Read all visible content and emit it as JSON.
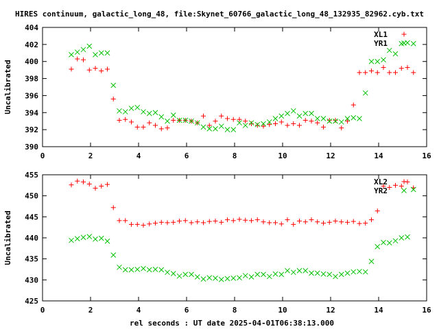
{
  "title": "HIRES continuum, galactic_long_48, file:Skynet_60766_galactic_long_48_132935_82962.cyb.txt",
  "xlabel": "rel seconds : UT date 2025-04-01T06:38:13.000",
  "colors": {
    "red": "#ff0000",
    "green": "#00c000"
  },
  "chart_data": [
    {
      "type": "scatter",
      "ylabel": "Uncalibrated",
      "xlim": [
        0,
        16
      ],
      "ylim": [
        390,
        404
      ],
      "xticks": [
        "0",
        "2",
        "4",
        "6",
        "8",
        "10",
        "12",
        "14",
        "16"
      ],
      "yticks": [
        "390",
        "392",
        "394",
        "396",
        "398",
        "400",
        "402",
        "404"
      ],
      "legend_position": "top-right",
      "series": [
        {
          "name": "XL1",
          "marker": "plus",
          "color": "red",
          "x": [
            1.2,
            1.45,
            1.7,
            1.95,
            2.2,
            2.45,
            2.7,
            2.95,
            3.2,
            3.45,
            3.7,
            3.95,
            4.2,
            4.45,
            4.7,
            4.95,
            5.2,
            5.45,
            5.7,
            5.95,
            6.2,
            6.45,
            6.7,
            6.95,
            7.2,
            7.45,
            7.7,
            7.95,
            8.2,
            8.45,
            8.7,
            8.95,
            9.2,
            9.45,
            9.7,
            9.95,
            10.2,
            10.45,
            10.7,
            10.95,
            11.2,
            11.45,
            11.7,
            11.95,
            12.2,
            12.45,
            12.7,
            12.95,
            13.2,
            13.45,
            13.7,
            13.95,
            14.2,
            14.45,
            14.7,
            14.95,
            15.2,
            15.45
          ],
          "y": [
            399.1,
            400.3,
            400.2,
            399.0,
            399.2,
            398.9,
            399.1,
            395.6,
            393.1,
            393.2,
            392.9,
            392.3,
            392.3,
            392.8,
            392.5,
            392.1,
            392.2,
            393.1,
            393.1,
            393.1,
            393.0,
            392.8,
            393.6,
            392.5,
            393.0,
            393.6,
            393.3,
            393.2,
            393.2,
            393.0,
            392.7,
            392.5,
            392.4,
            392.6,
            392.7,
            392.9,
            392.5,
            392.7,
            392.5,
            393.1,
            393.0,
            392.8,
            392.3,
            393.1,
            393.1,
            392.2,
            393.0,
            394.9,
            398.7,
            398.7,
            398.9,
            398.7,
            399.3,
            398.7,
            398.7,
            399.2,
            399.3,
            398.7
          ]
        },
        {
          "name": "YR1",
          "marker": "cross",
          "color": "green",
          "x": [
            1.2,
            1.45,
            1.7,
            1.95,
            2.2,
            2.45,
            2.7,
            2.95,
            3.2,
            3.45,
            3.7,
            3.95,
            4.2,
            4.45,
            4.7,
            4.95,
            5.2,
            5.45,
            5.7,
            5.95,
            6.2,
            6.45,
            6.7,
            6.95,
            7.2,
            7.45,
            7.7,
            7.95,
            8.2,
            8.45,
            8.7,
            8.95,
            9.2,
            9.45,
            9.7,
            9.95,
            10.2,
            10.45,
            10.7,
            10.95,
            11.2,
            11.45,
            11.7,
            11.95,
            12.2,
            12.45,
            12.7,
            12.95,
            13.2,
            13.45,
            13.7,
            13.95,
            14.2,
            14.45,
            14.7,
            14.95,
            15.2,
            15.45
          ],
          "y": [
            400.8,
            401.1,
            401.4,
            401.8,
            400.8,
            401.0,
            401.0,
            397.2,
            394.2,
            394.1,
            394.5,
            394.6,
            394.1,
            393.9,
            394.0,
            393.5,
            393.0,
            393.7,
            393.1,
            393.1,
            393.0,
            392.8,
            392.3,
            392.1,
            392.1,
            392.4,
            392.0,
            392.0,
            392.8,
            392.5,
            392.8,
            392.6,
            392.7,
            392.9,
            393.3,
            393.6,
            393.9,
            394.2,
            393.6,
            393.9,
            393.9,
            393.3,
            393.3,
            393.0,
            393.0,
            392.9,
            393.3,
            393.4,
            393.3,
            396.3,
            400.0,
            400.0,
            400.2,
            401.3,
            400.9,
            402.1,
            402.2,
            402.1
          ]
        }
      ]
    },
    {
      "type": "scatter",
      "ylabel": "Uncalibrated",
      "xlim": [
        0,
        16
      ],
      "ylim": [
        425,
        455
      ],
      "xticks": [
        "0",
        "2",
        "4",
        "6",
        "8",
        "10",
        "12",
        "14",
        "16"
      ],
      "yticks": [
        "425",
        "430",
        "435",
        "440",
        "445",
        "450",
        "455"
      ],
      "legend_position": "top-right",
      "series": [
        {
          "name": "XL2",
          "marker": "plus",
          "color": "red",
          "x": [
            1.2,
            1.45,
            1.7,
            1.95,
            2.2,
            2.45,
            2.7,
            2.95,
            3.2,
            3.45,
            3.7,
            3.95,
            4.2,
            4.45,
            4.7,
            4.95,
            5.2,
            5.45,
            5.7,
            5.95,
            6.2,
            6.45,
            6.7,
            6.95,
            7.2,
            7.45,
            7.7,
            7.95,
            8.2,
            8.45,
            8.7,
            8.95,
            9.2,
            9.45,
            9.7,
            9.95,
            10.2,
            10.45,
            10.7,
            10.95,
            11.2,
            11.45,
            11.7,
            11.95,
            12.2,
            12.45,
            12.7,
            12.95,
            13.2,
            13.45,
            13.7,
            13.95,
            14.2,
            14.45,
            14.7,
            14.95,
            15.2,
            15.45
          ],
          "y": [
            452.6,
            453.5,
            453.3,
            452.8,
            451.8,
            452.3,
            452.7,
            447.2,
            444.1,
            444.1,
            443.2,
            443.2,
            443.0,
            443.3,
            443.5,
            443.7,
            443.6,
            443.7,
            444.0,
            444.1,
            443.6,
            443.8,
            443.6,
            443.9,
            444.0,
            443.7,
            444.3,
            444.1,
            444.4,
            444.2,
            444.1,
            444.3,
            443.8,
            443.6,
            443.6,
            443.3,
            444.3,
            443.2,
            444.0,
            443.8,
            444.3,
            443.8,
            443.5,
            443.7,
            444.0,
            443.8,
            443.7,
            443.9,
            443.4,
            443.5,
            444.3,
            446.4,
            452.3,
            452.0,
            452.5,
            452.3,
            453.3,
            451.9
          ]
        },
        {
          "name": "YR2",
          "marker": "cross",
          "color": "green",
          "x": [
            1.2,
            1.45,
            1.7,
            1.95,
            2.2,
            2.45,
            2.7,
            2.95,
            3.2,
            3.45,
            3.7,
            3.95,
            4.2,
            4.45,
            4.7,
            4.95,
            5.2,
            5.45,
            5.7,
            5.95,
            6.2,
            6.45,
            6.7,
            6.95,
            7.2,
            7.45,
            7.7,
            7.95,
            8.2,
            8.45,
            8.7,
            8.95,
            9.2,
            9.45,
            9.7,
            9.95,
            10.2,
            10.45,
            10.7,
            10.95,
            11.2,
            11.45,
            11.7,
            11.95,
            12.2,
            12.45,
            12.7,
            12.95,
            13.2,
            13.45,
            13.7,
            13.95,
            14.2,
            14.45,
            14.7,
            14.95,
            15.2,
            15.45
          ],
          "y": [
            439.4,
            439.8,
            440.1,
            440.3,
            439.7,
            439.9,
            439.2,
            435.9,
            433.0,
            432.4,
            432.4,
            432.5,
            432.7,
            432.4,
            432.5,
            432.4,
            431.8,
            431.5,
            430.9,
            431.3,
            431.3,
            430.7,
            430.2,
            430.5,
            430.4,
            430.1,
            430.3,
            430.4,
            430.5,
            431.0,
            430.7,
            431.3,
            431.3,
            430.8,
            431.4,
            431.3,
            432.2,
            431.8,
            432.2,
            432.2,
            431.6,
            431.6,
            431.4,
            431.3,
            430.8,
            431.3,
            431.6,
            431.9,
            432.0,
            431.9,
            434.4,
            437.9,
            438.9,
            438.8,
            439.3,
            440.0,
            440.2,
            451.5
          ]
        }
      ]
    }
  ]
}
